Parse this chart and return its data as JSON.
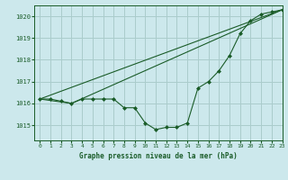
{
  "title": "Graphe pression niveau de la mer (hPa)",
  "bg_color": "#cce8ec",
  "grid_color": "#aacccc",
  "line_color": "#1a5c28",
  "xlim": [
    -0.5,
    23
  ],
  "ylim": [
    1014.3,
    1020.5
  ],
  "yticks": [
    1015,
    1016,
    1017,
    1018,
    1019,
    1020
  ],
  "xticks": [
    0,
    1,
    2,
    3,
    4,
    5,
    6,
    7,
    8,
    9,
    10,
    11,
    12,
    13,
    14,
    15,
    16,
    17,
    18,
    19,
    20,
    21,
    22,
    23
  ],
  "series1_x": [
    0,
    1,
    2,
    3,
    4,
    5,
    6,
    7,
    8,
    9,
    10,
    11,
    12,
    13,
    14,
    15,
    16,
    17,
    18,
    19,
    20,
    21,
    22,
    23
  ],
  "series1_y": [
    1016.2,
    1016.2,
    1016.1,
    1016.0,
    1016.2,
    1016.2,
    1016.2,
    1016.2,
    1015.8,
    1015.8,
    1015.1,
    1014.8,
    1014.9,
    1014.9,
    1015.1,
    1016.7,
    1017.0,
    1017.5,
    1018.2,
    1019.2,
    1019.8,
    1020.1,
    1020.2,
    1020.3
  ],
  "series2_x": [
    0,
    23
  ],
  "series2_y": [
    1016.2,
    1020.3
  ],
  "series3_x": [
    0,
    3,
    23
  ],
  "series3_y": [
    1016.2,
    1016.0,
    1020.3
  ]
}
